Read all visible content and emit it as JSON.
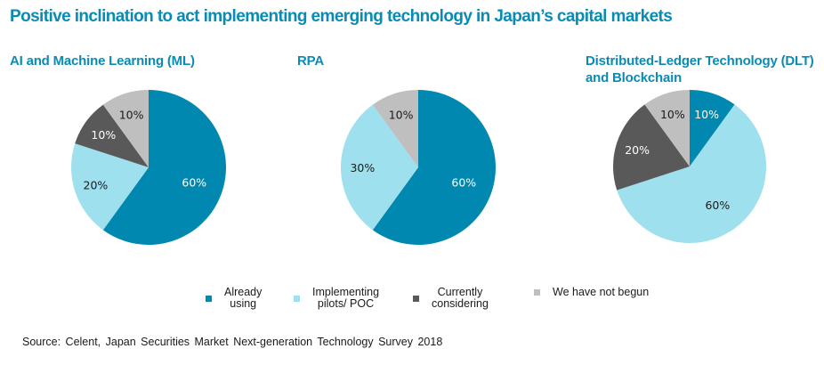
{
  "title": "Positive inclination to act implementing emerging technology in Japan’s capital markets",
  "source": "Source: Celent, Japan Securities Market Next-generation Technology Survey 2018",
  "colors": {
    "title": "#0a8bb3",
    "already_using": "#0088b1",
    "implementing": "#9fe0ee",
    "considering": "#595959",
    "not_begun": "#bfbfbf"
  },
  "legend": [
    {
      "label": "Already\nusing",
      "color": "#0088b1"
    },
    {
      "label": "Implementing\npilots/ POC",
      "color": "#9fe0ee"
    },
    {
      "label": "Currently\nconsidering",
      "color": "#595959"
    },
    {
      "label": "We have  not begun",
      "color": "#bfbfbf"
    }
  ],
  "chart_data": [
    {
      "type": "pie",
      "title": "AI and Machine Learning (ML)",
      "categories": [
        "Already using",
        "Implementing pilots/ POC",
        "Currently considering",
        "We have not begun"
      ],
      "values": [
        60,
        20,
        10,
        10
      ],
      "labels": [
        "60%",
        "20%",
        "10%",
        "10%"
      ],
      "colors": [
        "#0088b1",
        "#9fe0ee",
        "#595959",
        "#bfbfbf"
      ],
      "label_colors": [
        "#ffffff",
        "#1a1a1a",
        "#ffffff",
        "#1a1a1a"
      ]
    },
    {
      "type": "pie",
      "title": "RPA",
      "categories": [
        "Already using",
        "Implementing pilots/ POC",
        "Currently considering",
        "We have not begun"
      ],
      "values": [
        60,
        30,
        0,
        10
      ],
      "labels": [
        "60%",
        "30%",
        "",
        "10%"
      ],
      "colors": [
        "#0088b1",
        "#9fe0ee",
        "#595959",
        "#bfbfbf"
      ],
      "label_colors": [
        "#ffffff",
        "#1a1a1a",
        "#ffffff",
        "#1a1a1a"
      ]
    },
    {
      "type": "pie",
      "title": "Distributed-Ledger Technology (DLT) and Blockchain",
      "categories": [
        "Already using",
        "Implementing pilots/ POC",
        "Currently considering",
        "We have not begun"
      ],
      "values": [
        10,
        60,
        20,
        10
      ],
      "labels": [
        "10%",
        "60%",
        "20%",
        "10%"
      ],
      "colors": [
        "#0088b1",
        "#9fe0ee",
        "#595959",
        "#bfbfbf"
      ],
      "label_colors": [
        "#ffffff",
        "#1a1a1a",
        "#ffffff",
        "#1a1a1a"
      ]
    }
  ]
}
